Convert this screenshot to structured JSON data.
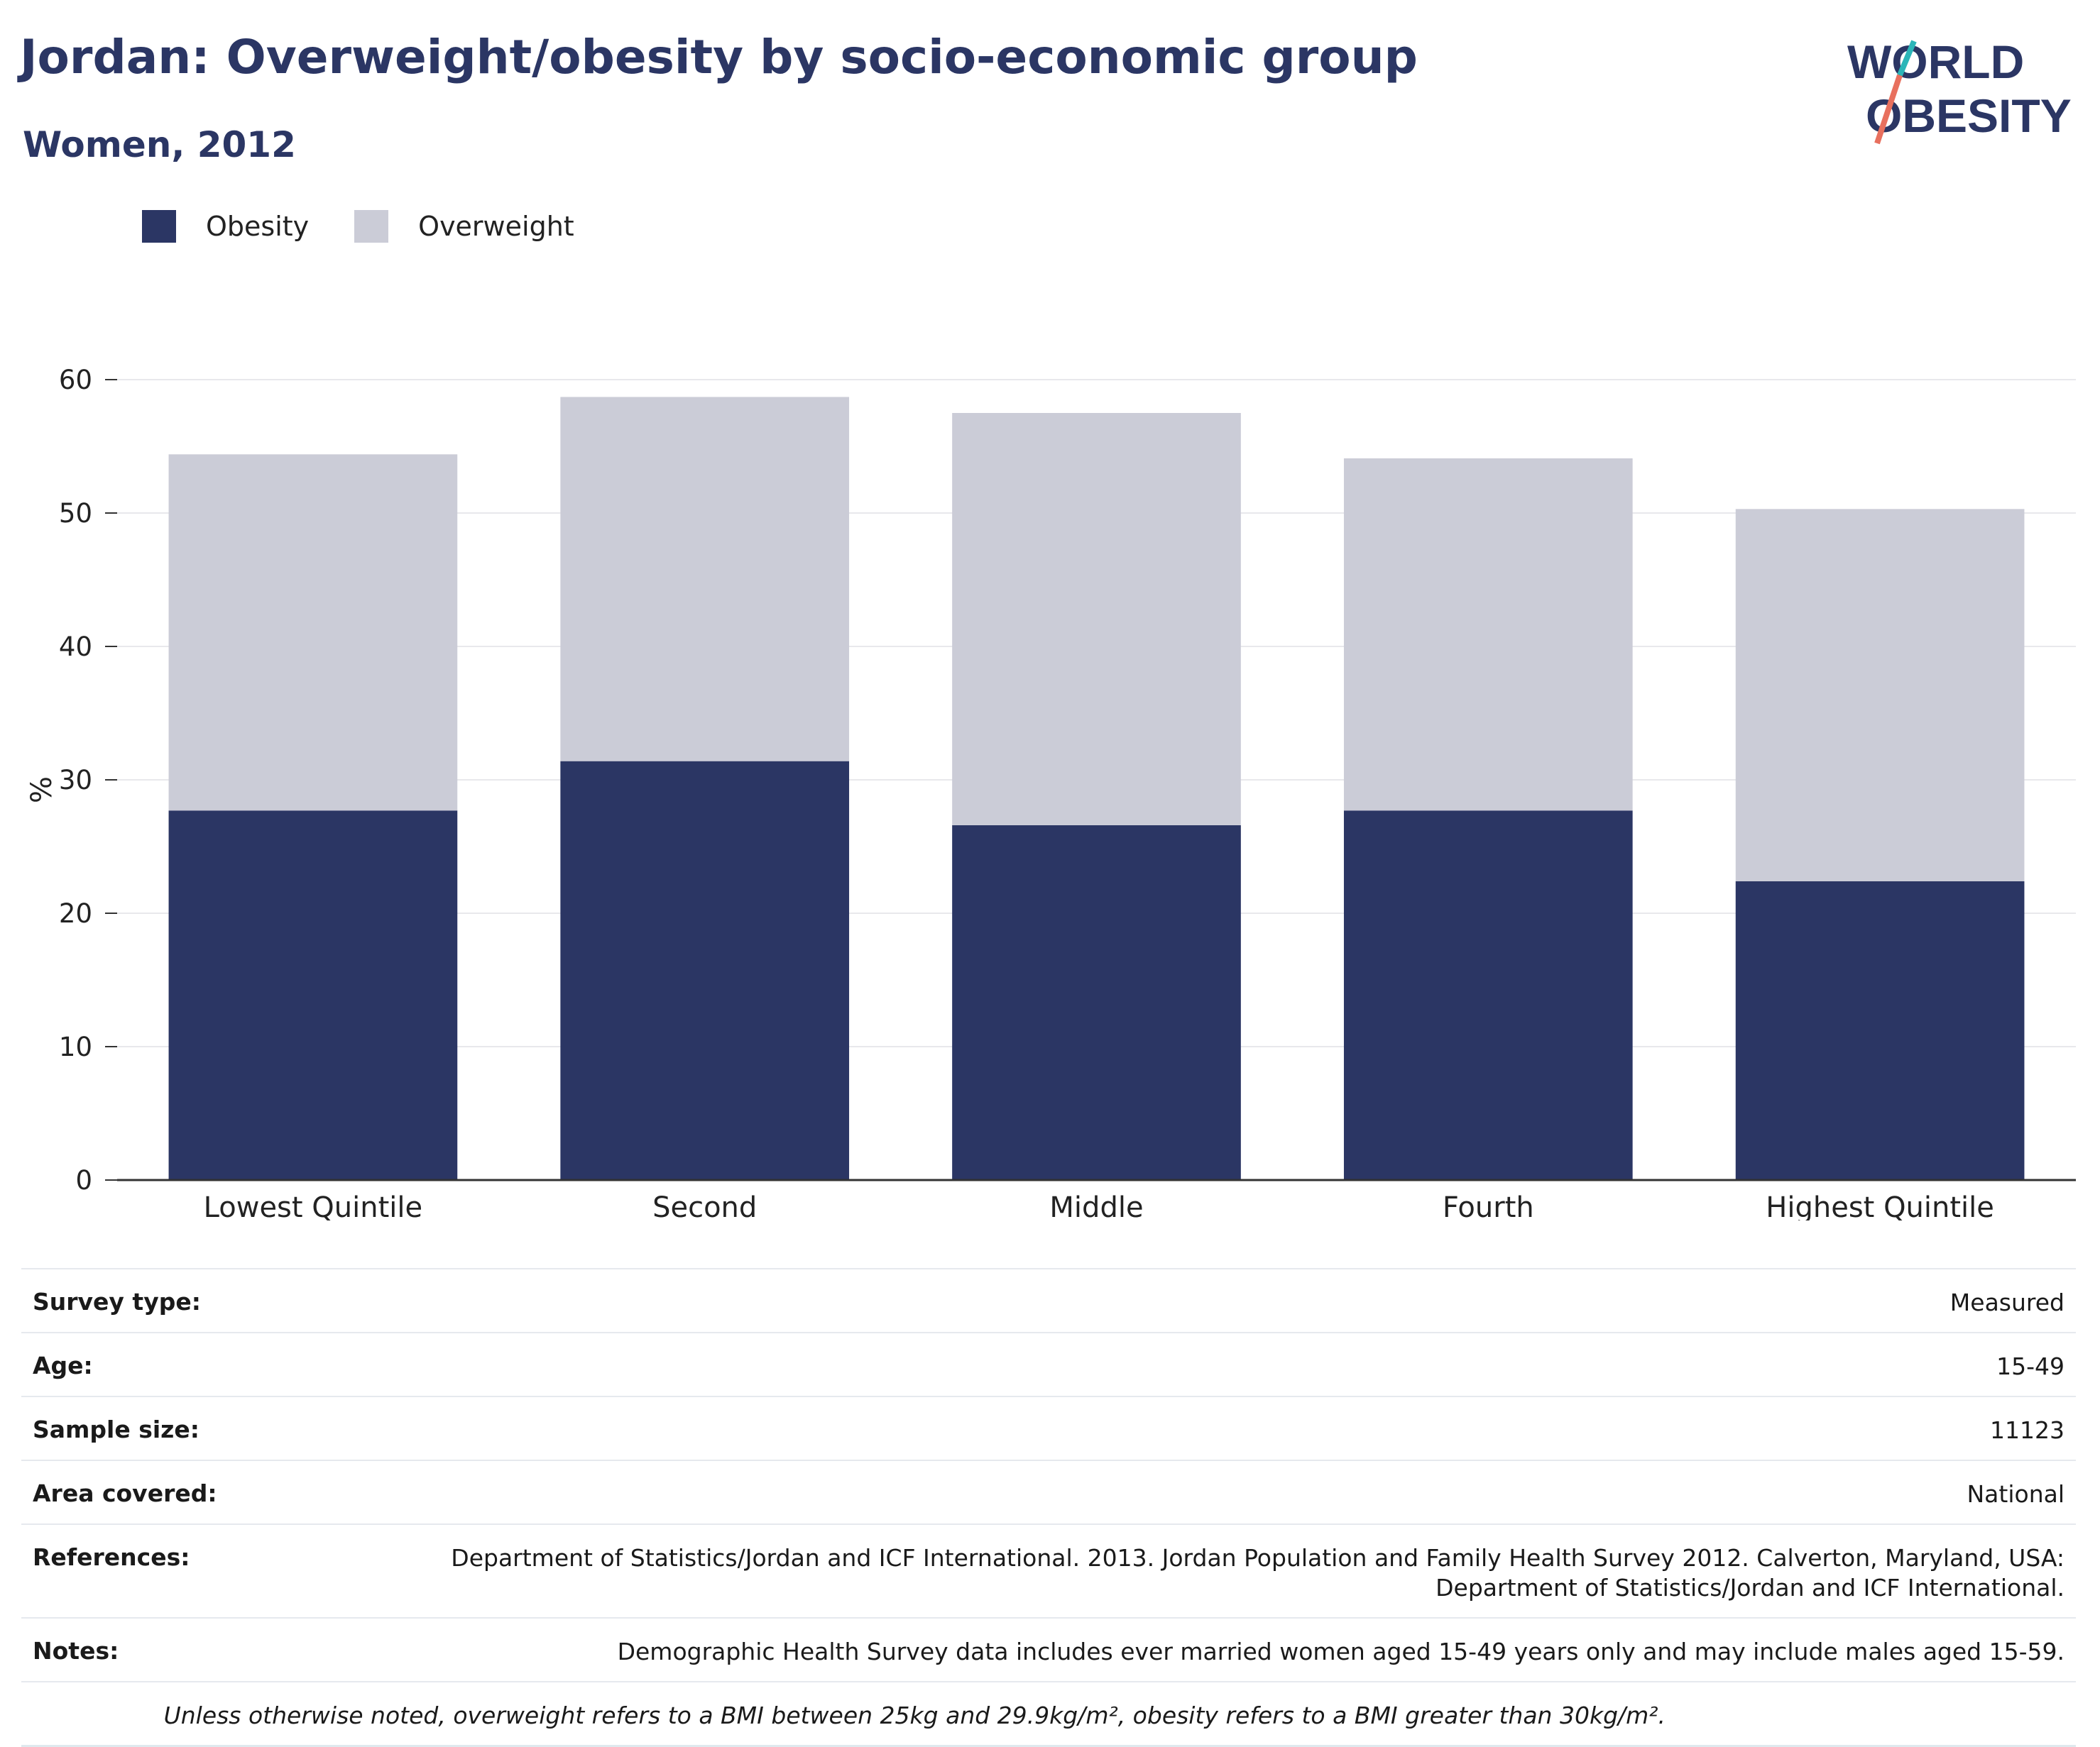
{
  "title": "Jordan: Overweight/obesity by socio-economic group",
  "subtitle": "Women, 2012",
  "logo": {
    "line1": "WORLD",
    "line2": "OBESITY"
  },
  "colors": {
    "obesity": "#2b3664",
    "overweight": "#cbccd7",
    "title": "#2b3664",
    "logo_teal": "#2bb5b8",
    "logo_coral": "#e8705e"
  },
  "chart_data": {
    "type": "bar",
    "stacked": true,
    "categories": [
      "Lowest Quintile",
      "Second",
      "Middle",
      "Fourth",
      "Highest Quintile"
    ],
    "series": [
      {
        "name": "Obesity",
        "values": [
          27.7,
          31.4,
          26.6,
          27.7,
          22.4
        ]
      },
      {
        "name": "Overweight",
        "values": [
          26.7,
          27.3,
          30.9,
          26.4,
          27.9
        ]
      }
    ],
    "ylabel": "%",
    "ylim": [
      0,
      60
    ],
    "yticks": [
      0,
      10,
      20,
      30,
      40,
      50,
      60
    ],
    "grid": true,
    "legend_position": "top-left"
  },
  "info": [
    {
      "label": "Survey type:",
      "value": "Measured"
    },
    {
      "label": "Age:",
      "value": "15-49"
    },
    {
      "label": "Sample size:",
      "value": "11123"
    },
    {
      "label": "Area covered:",
      "value": "National"
    },
    {
      "label": "References:",
      "value": "Department of Statistics/Jordan and ICF International. 2013. Jordan Population and Family Health Survey 2012. Calverton, Maryland, USA: Department of Statistics/Jordan and ICF International."
    },
    {
      "label": "Notes:",
      "value": "Demographic Health Survey data includes ever married women aged 15-49 years only and may include males aged 15-59."
    }
  ],
  "footnote": "Unless otherwise noted, overweight refers to a BMI between 25kg and 29.9kg/m², obesity refers to a BMI greater than 30kg/m²."
}
